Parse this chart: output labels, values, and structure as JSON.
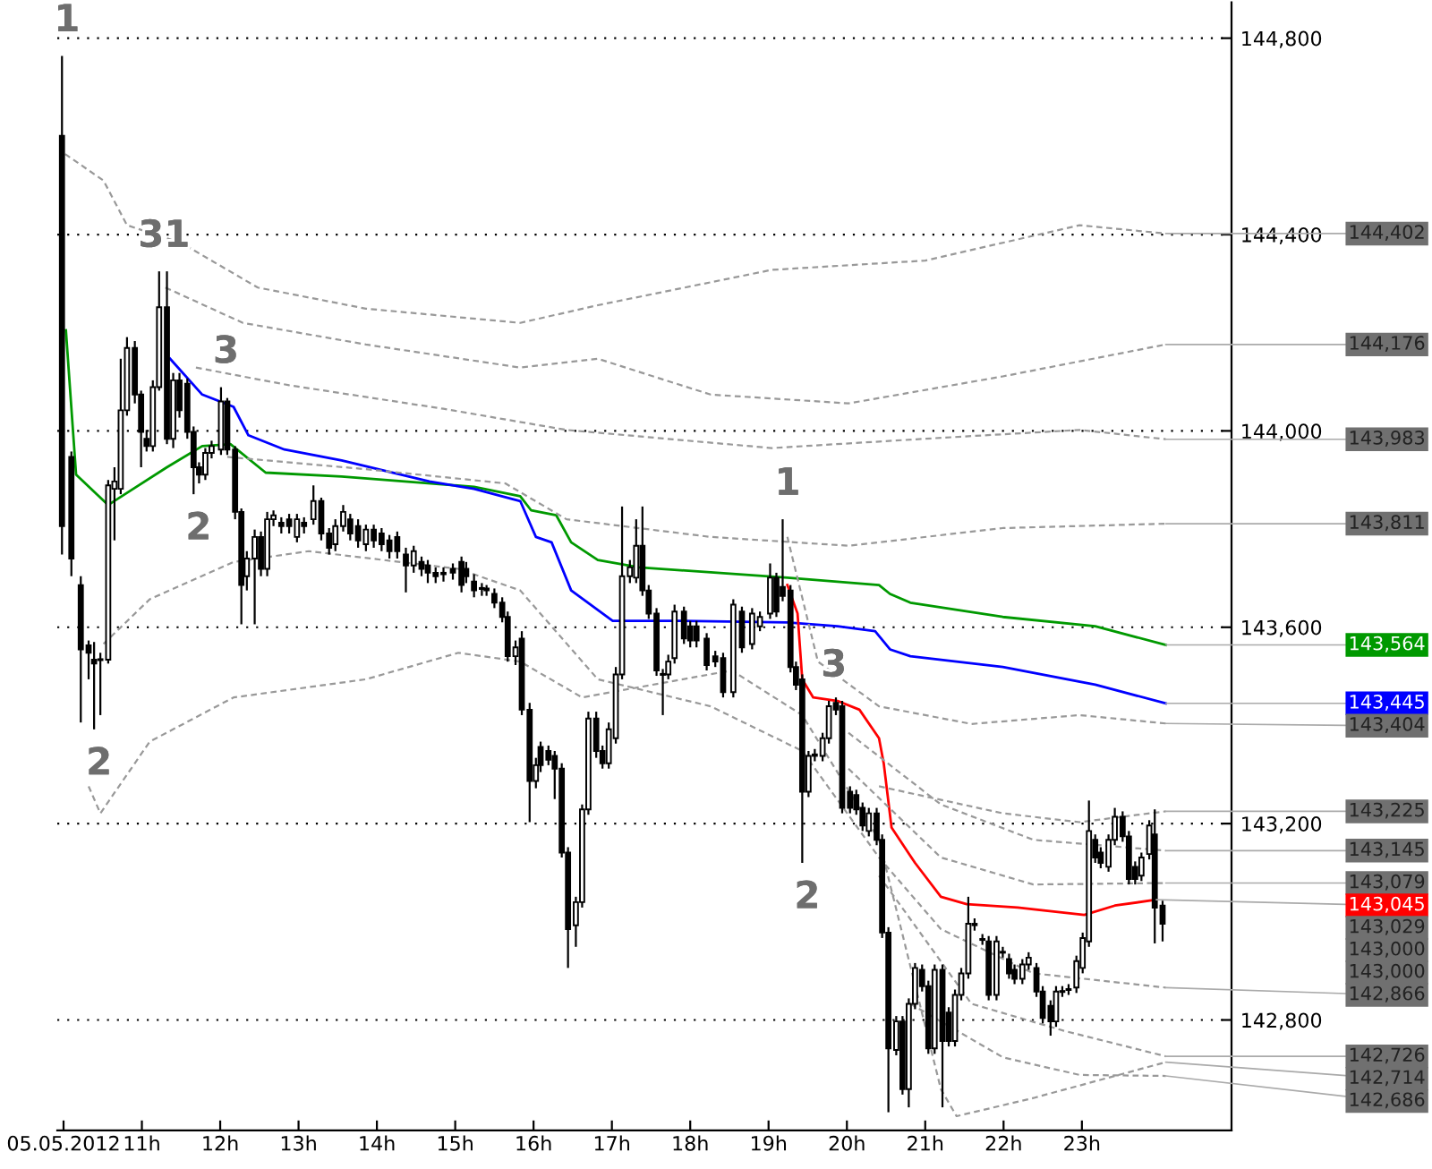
{
  "chart_data": {
    "type": "candlestick",
    "x": [
      9.98,
      10.1,
      10.22,
      10.32,
      10.39,
      10.47,
      10.57,
      10.65,
      10.73,
      10.81,
      10.91,
      10.99,
      11.06,
      11.14,
      11.22,
      11.32,
      11.4,
      11.48,
      11.58,
      11.66,
      11.73,
      11.81,
      11.89,
      12.01,
      12.09,
      12.19,
      12.27,
      12.34,
      12.44,
      12.52,
      12.6,
      12.68,
      12.78,
      12.88,
      12.98,
      13.07,
      13.19,
      13.29,
      13.39,
      13.47,
      13.57,
      13.66,
      13.76,
      13.86,
      13.96,
      14.06,
      14.16,
      14.26,
      14.37,
      14.47,
      14.57,
      14.65,
      14.75,
      14.85,
      14.97,
      15.08,
      15.14,
      15.24,
      15.34,
      15.4,
      15.5,
      15.6,
      15.67,
      15.77,
      15.85,
      15.95,
      16.03,
      16.09,
      16.19,
      16.27,
      16.36,
      16.44,
      16.54,
      16.62,
      16.7,
      16.8,
      16.88,
      16.96,
      17.05,
      17.13,
      17.23,
      17.31,
      17.39,
      17.47,
      17.57,
      17.65,
      17.72,
      17.8,
      17.92,
      18.0,
      18.08,
      18.21,
      18.32,
      18.42,
      18.55,
      18.66,
      18.79,
      18.89,
      19.02,
      19.1,
      19.18,
      19.28,
      19.35,
      19.43,
      19.51,
      19.59,
      19.69,
      19.77,
      19.86,
      19.94,
      20.04,
      20.12,
      20.2,
      20.28,
      20.38,
      20.45,
      20.53,
      20.63,
      20.71,
      20.79,
      20.87,
      20.96,
      21.04,
      21.12,
      21.22,
      21.3,
      21.38,
      21.46,
      21.55,
      21.63,
      21.73,
      21.81,
      21.91,
      21.99,
      22.07,
      22.14,
      22.24,
      22.32,
      22.42,
      22.5,
      22.6,
      22.67,
      22.75,
      22.83,
      22.93,
      23.01,
      23.09,
      23.17,
      23.24,
      23.34,
      23.42,
      23.52,
      23.6,
      23.68,
      23.76,
      23.86,
      23.93,
      24.03
    ],
    "ohlc": [
      [
        144601,
        144764,
        143748,
        143806
      ],
      [
        143947,
        143958,
        143704,
        143740
      ],
      [
        143686,
        143704,
        143406,
        143555
      ],
      [
        143563,
        143573,
        143494,
        143548
      ],
      [
        143534,
        143570,
        143392,
        143526
      ],
      [
        143534,
        143548,
        143421,
        143534
      ],
      [
        143534,
        143900,
        143526,
        143889
      ],
      [
        143882,
        143926,
        143777,
        143897
      ],
      [
        143882,
        144147,
        143871,
        144042
      ],
      [
        144042,
        144191,
        144031,
        144169
      ],
      [
        144169,
        144183,
        144056,
        144074
      ],
      [
        144074,
        144082,
        143926,
        143998
      ],
      [
        143984,
        144002,
        143958,
        143969
      ],
      [
        143969,
        144103,
        143958,
        144089
      ],
      [
        144089,
        144325,
        144082,
        144252
      ],
      [
        144252,
        144325,
        143973,
        143984
      ],
      [
        143984,
        144118,
        143965,
        144103
      ],
      [
        144103,
        144118,
        144027,
        144042
      ],
      [
        144096,
        144107,
        143984,
        143998
      ],
      [
        143998,
        144009,
        143871,
        143926
      ],
      [
        143926,
        143936,
        143893,
        143911
      ],
      [
        143911,
        143965,
        143900,
        143955
      ],
      [
        143955,
        143980,
        143944,
        143969
      ],
      [
        143962,
        144089,
        143951,
        144060
      ],
      [
        144060,
        144067,
        143951,
        143962
      ],
      [
        143962,
        143969,
        143820,
        143835
      ],
      [
        143835,
        143842,
        143606,
        143686
      ],
      [
        143704,
        143755,
        143675,
        143740
      ],
      [
        143740,
        143799,
        143606,
        143784
      ],
      [
        143784,
        143795,
        143704,
        143719
      ],
      [
        143719,
        143835,
        143704,
        143820
      ],
      [
        143820,
        143838,
        143806,
        143828
      ],
      [
        143813,
        143824,
        143791,
        143806
      ],
      [
        143820,
        143831,
        143791,
        143806
      ],
      [
        143784,
        143831,
        143773,
        143820
      ],
      [
        143813,
        143824,
        143791,
        143806
      ],
      [
        143820,
        143889,
        143809,
        143857
      ],
      [
        143857,
        143864,
        143777,
        143791
      ],
      [
        143791,
        143802,
        143748,
        143762
      ],
      [
        143769,
        143820,
        143755,
        143806
      ],
      [
        143806,
        143849,
        143795,
        143835
      ],
      [
        143820,
        143831,
        143777,
        143791
      ],
      [
        143806,
        143820,
        143762,
        143777
      ],
      [
        143769,
        143809,
        143755,
        143799
      ],
      [
        143799,
        143809,
        143762,
        143777
      ],
      [
        143791,
        143802,
        143755,
        143769
      ],
      [
        143777,
        143788,
        143740,
        143755
      ],
      [
        143784,
        143795,
        143740,
        143755
      ],
      [
        143748,
        143762,
        143671,
        143726
      ],
      [
        143726,
        143766,
        143711,
        143755
      ],
      [
        143733,
        143744,
        143704,
        143719
      ],
      [
        143726,
        143737,
        143690,
        143711
      ],
      [
        143711,
        143722,
        143690,
        143704
      ],
      [
        143711,
        143722,
        143693,
        143708
      ],
      [
        143719,
        143730,
        143697,
        143711
      ],
      [
        143733,
        143744,
        143671,
        143686
      ],
      [
        143719,
        143733,
        143690,
        143704
      ],
      [
        143693,
        143708,
        143661,
        143675
      ],
      [
        143679,
        143690,
        143664,
        143679
      ],
      [
        143679,
        143686,
        143664,
        143675
      ],
      [
        143668,
        143679,
        143639,
        143650
      ],
      [
        143650,
        143661,
        143610,
        143621
      ],
      [
        143621,
        143632,
        143530,
        143541
      ],
      [
        143541,
        143573,
        143523,
        143559
      ],
      [
        143577,
        143592,
        143421,
        143432
      ],
      [
        143432,
        143446,
        143203,
        143287
      ],
      [
        143287,
        143334,
        143272,
        143319
      ],
      [
        143356,
        143367,
        143305,
        143319
      ],
      [
        143348,
        143359,
        143319,
        143330
      ],
      [
        143338,
        143348,
        143250,
        143312
      ],
      [
        143312,
        143323,
        143131,
        143141
      ],
      [
        143141,
        143152,
        142906,
        142985
      ],
      [
        142993,
        143051,
        142949,
        143040
      ],
      [
        143040,
        143239,
        143029,
        143229
      ],
      [
        143229,
        143428,
        143218,
        143414
      ],
      [
        143414,
        143428,
        143334,
        143348
      ],
      [
        143348,
        143359,
        143312,
        143323
      ],
      [
        143323,
        143406,
        143312,
        143392
      ],
      [
        143374,
        143519,
        143363,
        143504
      ],
      [
        143504,
        143846,
        143494,
        143704
      ],
      [
        143704,
        143737,
        143690,
        143722
      ],
      [
        143701,
        143820,
        143690,
        143766
      ],
      [
        143766,
        143846,
        143664,
        143675
      ],
      [
        143675,
        143686,
        143617,
        143628
      ],
      [
        143628,
        143639,
        143501,
        143512
      ],
      [
        143504,
        143515,
        143421,
        143504
      ],
      [
        143504,
        143544,
        143494,
        143530
      ],
      [
        143537,
        143646,
        143526,
        143632
      ],
      [
        143632,
        143642,
        143566,
        143577
      ],
      [
        143602,
        143613,
        143559,
        143573
      ],
      [
        143602,
        143613,
        143559,
        143573
      ],
      [
        143577,
        143588,
        143512,
        143523
      ],
      [
        143541,
        143552,
        143519,
        143530
      ],
      [
        143537,
        143548,
        143457,
        143468
      ],
      [
        143468,
        143657,
        143457,
        143646
      ],
      [
        143632,
        143642,
        143548,
        143559
      ],
      [
        143566,
        143639,
        143555,
        143628
      ],
      [
        143602,
        143632,
        143592,
        143621
      ],
      [
        143628,
        143730,
        143617,
        143701
      ],
      [
        143701,
        143711,
        143621,
        143632
      ],
      [
        143682,
        143820,
        143653,
        143664
      ],
      [
        143675,
        143686,
        143508,
        143519
      ],
      [
        143519,
        143530,
        143472,
        143483
      ],
      [
        143494,
        143504,
        143120,
        143265
      ],
      [
        143265,
        143348,
        143254,
        143338
      ],
      [
        143341,
        143352,
        143327,
        143338
      ],
      [
        143338,
        143385,
        143327,
        143374
      ],
      [
        143374,
        143450,
        143363,
        143439
      ],
      [
        143446,
        143457,
        143421,
        143432
      ],
      [
        143439,
        143450,
        143221,
        143232
      ],
      [
        143265,
        143276,
        143221,
        143232
      ],
      [
        143258,
        143269,
        143218,
        143229
      ],
      [
        143232,
        143243,
        143185,
        143196
      ],
      [
        143185,
        143232,
        143174,
        143221
      ],
      [
        143221,
        143232,
        143156,
        143167
      ],
      [
        143167,
        143178,
        142967,
        142978
      ],
      [
        142978,
        142989,
        142612,
        142742
      ],
      [
        142739,
        142808,
        142728,
        142797
      ],
      [
        142797,
        142808,
        142648,
        142659
      ],
      [
        142659,
        142844,
        142622,
        142833
      ],
      [
        142833,
        142916,
        142822,
        142906
      ],
      [
        142902,
        142913,
        142858,
        142869
      ],
      [
        142869,
        142880,
        142731,
        142742
      ],
      [
        142742,
        142913,
        142731,
        142902
      ],
      [
        142902,
        142913,
        142622,
        142757
      ],
      [
        142815,
        142826,
        142746,
        142757
      ],
      [
        142757,
        142862,
        142746,
        142851
      ],
      [
        142851,
        142906,
        142840,
        142895
      ],
      [
        142895,
        143051,
        142884,
        142996
      ],
      [
        142996,
        143007,
        142982,
        142993
      ],
      [
        142964,
        142975,
        142953,
        142964
      ],
      [
        142960,
        142971,
        142840,
        142851
      ],
      [
        142851,
        142971,
        142840,
        142960
      ],
      [
        142938,
        142949,
        142927,
        142938
      ],
      [
        142924,
        142935,
        142884,
        142895
      ],
      [
        142902,
        142913,
        142873,
        142884
      ],
      [
        142884,
        142924,
        142873,
        142913
      ],
      [
        142913,
        142938,
        142902,
        142927
      ],
      [
        142906,
        142916,
        142847,
        142858
      ],
      [
        142858,
        142869,
        142793,
        142804
      ],
      [
        142829,
        142840,
        142768,
        142797
      ],
      [
        142797,
        142869,
        142786,
        142858
      ],
      [
        142858,
        142869,
        142847,
        142858
      ],
      [
        142862,
        142873,
        142851,
        142862
      ],
      [
        142866,
        142931,
        142855,
        142920
      ],
      [
        142906,
        142978,
        142895,
        142967
      ],
      [
        142960,
        143247,
        142949,
        143185
      ],
      [
        143167,
        143178,
        143120,
        143131
      ],
      [
        143141,
        143152,
        143109,
        143120
      ],
      [
        143112,
        143178,
        143102,
        143167
      ],
      [
        143167,
        143232,
        143156,
        143214
      ],
      [
        143214,
        143225,
        143163,
        143174
      ],
      [
        143174,
        143185,
        143076,
        143087
      ],
      [
        143112,
        143123,
        143076,
        143087
      ],
      [
        143094,
        143141,
        143083,
        143131
      ],
      [
        143138,
        143207,
        143127,
        143196
      ],
      [
        143178,
        143229,
        142956,
        143029
      ],
      [
        143033,
        143043,
        142960,
        142996
      ]
    ],
    "series": [
      {
        "type": "line",
        "color": "#009900",
        "x": [
          10.03,
          10.16,
          10.57,
          10.89,
          11.32,
          11.77,
          12.13,
          12.58,
          13.55,
          15.24,
          15.83,
          15.97,
          16.29,
          16.48,
          16.82,
          17.35,
          19.24,
          20.41,
          20.55,
          20.81,
          21.99,
          23.17,
          24.07
        ],
        "values": [
          144205,
          143911,
          143849,
          143882,
          143926,
          143969,
          143973,
          143915,
          143907,
          143886,
          143867,
          143838,
          143828,
          143773,
          143737,
          143722,
          143701,
          143686,
          143668,
          143650,
          143621,
          143602,
          143564
        ]
      },
      {
        "type": "line",
        "color": "#0000ff",
        "x": [
          11.36,
          11.77,
          12.17,
          12.36,
          12.82,
          13.55,
          14.67,
          15.24,
          15.83,
          16.03,
          16.23,
          16.48,
          17.01,
          17.86,
          19.24,
          19.88,
          20.36,
          20.55,
          20.81,
          21.99,
          23.17,
          24.07
        ],
        "values": [
          144147,
          144074,
          144049,
          143991,
          143962,
          143940,
          143897,
          143882,
          143857,
          143784,
          143773,
          143675,
          143613,
          143613,
          143610,
          143602,
          143592,
          143555,
          143541,
          143519,
          143483,
          143445
        ]
      },
      {
        "type": "line",
        "color": "#ff0000",
        "x": [
          19.24,
          19.37,
          19.43,
          19.57,
          19.88,
          20.16,
          20.41,
          20.47,
          20.57,
          20.87,
          21.2,
          21.53,
          22.18,
          23.03,
          23.42,
          23.95
        ],
        "values": [
          143686,
          143628,
          143494,
          143457,
          143450,
          143432,
          143374,
          143323,
          143192,
          143120,
          143051,
          143036,
          143029,
          143014,
          143033,
          143045
        ]
      },
      {
        "type": "line",
        "color": "#999999",
        "line_style": "dashed",
        "x": [
          10.02,
          10.51,
          10.81,
          11.5,
          12.48,
          13.86,
          15.83,
          16.82,
          19.04,
          21.0,
          22.97,
          24.07
        ],
        "values": [
          144564,
          144510,
          144419,
          144383,
          144292,
          144249,
          144220,
          144256,
          144328,
          144347,
          144419,
          144402
        ]
      },
      {
        "type": "line",
        "color": "#999999",
        "line_style": "dashed",
        "x": [
          11.3,
          12.29,
          13.86,
          15.83,
          16.82,
          18.26,
          20.02,
          21.99,
          24.07
        ],
        "values": [
          144292,
          144220,
          144176,
          144129,
          144147,
          144074,
          144056,
          144111,
          144176
        ]
      },
      {
        "type": "line",
        "color": "#999999",
        "line_style": "dashed",
        "x": [
          11.69,
          12.88,
          14.85,
          16.42,
          19.04,
          21.0,
          22.97,
          24.07
        ],
        "values": [
          144129,
          144093,
          144045,
          144002,
          143965,
          143984,
          144002,
          143983
        ]
      },
      {
        "type": "line",
        "color": "#999999",
        "line_style": "dashed",
        "x": [
          12.09,
          13.86,
          15.64,
          16.42,
          18.26,
          20.02,
          21.99,
          24.07
        ],
        "values": [
          143947,
          143922,
          143893,
          143820,
          143784,
          143766,
          143802,
          143811
        ]
      },
      {
        "type": "line",
        "color": "#999999",
        "line_style": "dashed",
        "x": [
          19.24,
          19.63,
          20.41,
          21.59,
          22.97,
          24.07
        ],
        "values": [
          143784,
          143530,
          143439,
          143403,
          143421,
          143404
        ]
      },
      {
        "type": "line",
        "color": "#999999",
        "line_style": "dashed",
        "x": [
          10.51,
          11.1,
          12.17,
          13.13,
          15.04,
          15.83,
          16.82,
          18.26,
          19.43,
          20.41,
          21.2,
          22.38,
          24.07
        ],
        "values": [
          143566,
          143657,
          143733,
          143755,
          143719,
          143675,
          143494,
          143439,
          143348,
          143131,
          142985,
          142895,
          142866
        ]
      },
      {
        "type": "line",
        "color": "#999999",
        "line_style": "dashed",
        "x": [
          10.32,
          10.47,
          11.1,
          12.17,
          13.86,
          15.04,
          15.83,
          16.62,
          18.53,
          19.43,
          20.41,
          21.2,
          21.4,
          22.38,
          24.07
        ],
        "values": [
          143276,
          143221,
          143367,
          143457,
          143494,
          143548,
          143530,
          143457,
          143512,
          143421,
          143167,
          142659,
          142604,
          142641,
          142714
        ]
      },
      {
        "type": "line",
        "color": "#999999",
        "line_style": "dashed",
        "x": [
          20.41,
          21.99,
          22.97,
          24.07
        ],
        "values": [
          143276,
          143221,
          143203,
          143225
        ]
      },
      {
        "type": "line",
        "color": "#999999",
        "line_style": "dashed",
        "x": [
          20.02,
          21.2,
          22.38,
          24.07
        ],
        "values": [
          143385,
          143239,
          143167,
          143145
        ]
      },
      {
        "type": "line",
        "color": "#999999",
        "line_style": "dashed",
        "x": [
          20.02,
          21.2,
          22.38,
          24.07
        ],
        "values": [
          143312,
          143131,
          143076,
          143079
        ]
      },
      {
        "type": "line",
        "color": "#999999",
        "line_style": "dashed",
        "x": [
          20.41,
          21.59,
          22.77,
          24.07
        ],
        "values": [
          143094,
          142833,
          142778,
          142726
        ]
      },
      {
        "type": "line",
        "color": "#999999",
        "line_style": "dashed",
        "x": [
          20.81,
          21.99,
          22.97,
          24.07
        ],
        "values": [
          142833,
          142724,
          142688,
          142686
        ]
      }
    ],
    "xlim": [
      9.92,
      24.91
    ],
    "ylim": [
      142575,
      144873
    ],
    "xticks": [
      {
        "value": 10,
        "label": "05.05.2012"
      },
      {
        "value": 11,
        "label": "11h"
      },
      {
        "value": 12,
        "label": "12h"
      },
      {
        "value": 13,
        "label": "13h"
      },
      {
        "value": 14,
        "label": "14h"
      },
      {
        "value": 15,
        "label": "15h"
      },
      {
        "value": 16,
        "label": "16h"
      },
      {
        "value": 17,
        "label": "17h"
      },
      {
        "value": 18,
        "label": "18h"
      },
      {
        "value": 19,
        "label": "19h"
      },
      {
        "value": 20,
        "label": "20h"
      },
      {
        "value": 21,
        "label": "21h"
      },
      {
        "value": 22,
        "label": "22h"
      },
      {
        "value": 23,
        "label": "23h"
      }
    ],
    "yticks": [
      {
        "value": 142800,
        "label": "142,800"
      },
      {
        "value": 143200,
        "label": "143,200"
      },
      {
        "value": 143600,
        "label": "143,600"
      },
      {
        "value": 144000,
        "label": "144,000"
      },
      {
        "value": 144400,
        "label": "144,400"
      },
      {
        "value": 144800,
        "label": "144,800"
      }
    ],
    "grid": "y",
    "annotations": [
      {
        "text": "1",
        "x": 9.98,
        "y": 144764
      },
      {
        "text": "31",
        "x": 11.22,
        "y": 144325
      },
      {
        "text": "3",
        "x": 12.01,
        "y": 144089
      },
      {
        "text": "2",
        "x": 11.66,
        "y": 143871
      },
      {
        "text": "2",
        "x": 10.39,
        "y": 143392
      },
      {
        "text": "1",
        "x": 19.18,
        "y": 143820
      },
      {
        "text": "3",
        "x": 19.77,
        "y": 143450
      },
      {
        "text": "2",
        "x": 19.43,
        "y": 143120
      },
      {
        "text": "144,402",
        "x": 24.07,
        "y": 144402
      },
      {
        "text": "144,176",
        "x": 24.07,
        "y": 144176
      },
      {
        "text": "143,983",
        "x": 24.07,
        "y": 143983
      },
      {
        "text": "143,811",
        "x": 24.07,
        "y": 143811
      },
      {
        "text": "143,564",
        "x": 24.07,
        "y": 143564
      },
      {
        "text": "143,445",
        "x": 24.07,
        "y": 143445
      },
      {
        "text": "143,404",
        "x": 24.07,
        "y": 143404
      },
      {
        "text": "143,225",
        "x": 24.07,
        "y": 143225
      },
      {
        "text": "143,145",
        "x": 24.07,
        "y": 143145
      },
      {
        "text": "143,079",
        "x": 24.07,
        "y": 143079
      },
      {
        "text": "143,045",
        "x": 23.95,
        "y": 143045
      },
      "143,029",
      "143,000",
      "143,000",
      {
        "text": "142,866",
        "x": 24.07,
        "y": 142866
      },
      {
        "text": "142,726",
        "x": 24.07,
        "y": 142726
      },
      {
        "text": "142,714",
        "x": 24.07,
        "y": 142714
      },
      {
        "text": "142,686",
        "x": 24.07,
        "y": 142686
      }
    ]
  }
}
